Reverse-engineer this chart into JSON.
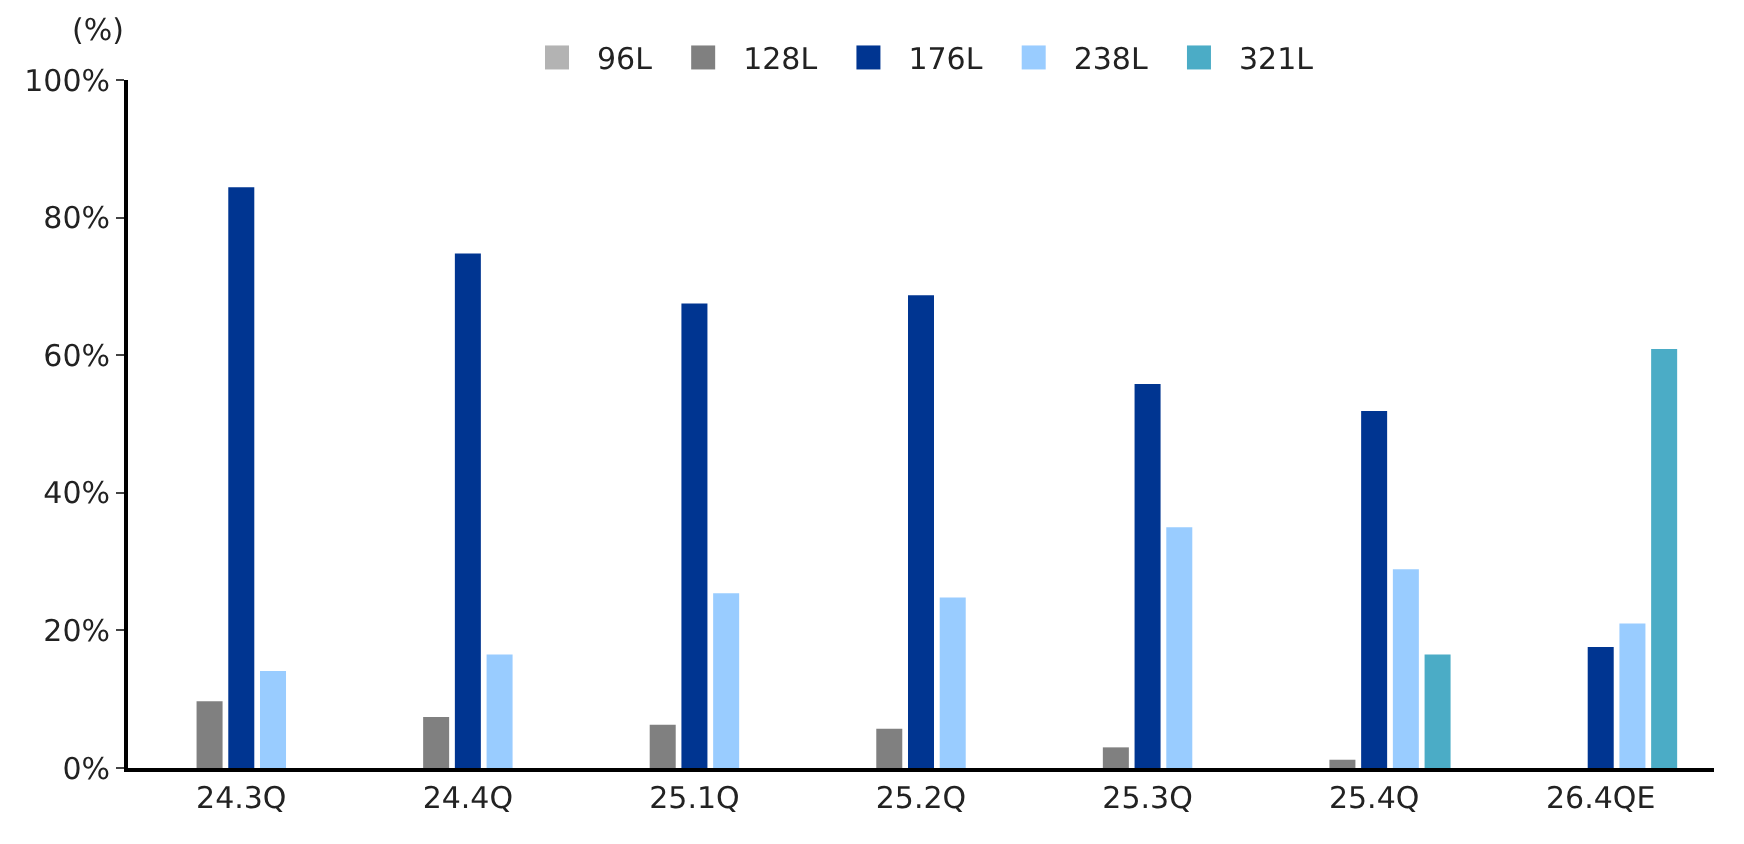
{
  "chart_data": {
    "type": "bar",
    "ylabel": "(%)",
    "categories": [
      "24.3Q",
      "24.4Q",
      "25.1Q",
      "25.2Q",
      "25.3Q",
      "25.4Q",
      "26.4QE"
    ],
    "series": [
      {
        "name": "96L",
        "color": "#b3b3b3",
        "values": [
          null,
          null,
          null,
          null,
          null,
          null,
          null
        ]
      },
      {
        "name": "128L",
        "color": "#808080",
        "values": [
          9.7,
          7.4,
          6.3,
          5.7,
          3.0,
          1.2,
          null
        ]
      },
      {
        "name": "176L",
        "color": "#003591",
        "values": [
          84.4,
          74.8,
          67.5,
          68.7,
          55.8,
          51.9,
          17.6
        ]
      },
      {
        "name": "238L",
        "color": "#99ccff",
        "values": [
          14.1,
          16.5,
          25.4,
          24.8,
          35.0,
          28.9,
          21.0
        ]
      },
      {
        "name": "321L",
        "color": "#4bacc6",
        "values": [
          null,
          null,
          null,
          null,
          null,
          16.5,
          60.9
        ]
      }
    ],
    "ylim": [
      0,
      100
    ],
    "yticks": [
      {
        "value": 0,
        "label": "0%"
      },
      {
        "value": 20,
        "label": "20%"
      },
      {
        "value": 40,
        "label": "40%"
      },
      {
        "value": 60,
        "label": "60%"
      },
      {
        "value": 80,
        "label": "80%"
      },
      {
        "value": 100,
        "label": "100%"
      }
    ],
    "legend": "top"
  }
}
